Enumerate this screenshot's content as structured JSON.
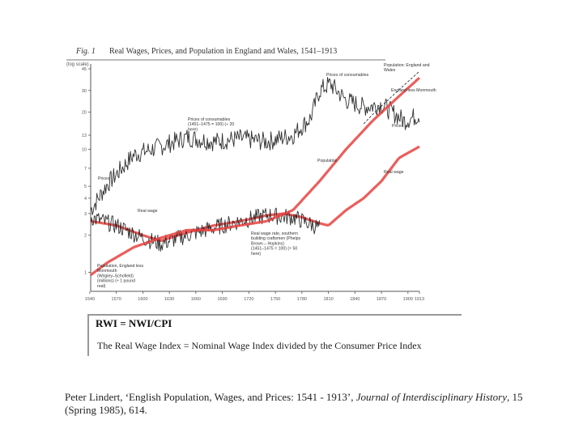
{
  "figure": {
    "caption_fig": "Fig. 1",
    "caption_title": "Real Wages, Prices, and Population in England and Wales, 1541–1913"
  },
  "chart_data": {
    "type": "line",
    "title": "Real Wages, Prices, and Population in England and Wales, 1541–1913",
    "ylabel": "(log scale)",
    "xlim": [
      1541,
      1913
    ],
    "ylim": [
      0.7,
      45
    ],
    "x_ticks": [
      1540,
      1570,
      1600,
      1630,
      1660,
      1690,
      1720,
      1750,
      1780,
      1810,
      1840,
      1870,
      1900,
      1913
    ],
    "x_tick_labels": [
      "1540",
      "1570",
      "1600",
      "1630",
      "1660",
      "1690",
      "1720",
      "1750",
      "1780",
      "1810",
      "1840",
      "1870",
      "1900",
      "1913"
    ],
    "y_ticks": [
      1,
      2,
      3,
      4,
      5,
      7,
      10,
      13,
      20,
      30,
      45
    ],
    "y_tick_labels": [
      "1",
      "2",
      "3",
      "4",
      "5",
      "7",
      "10",
      "13",
      "20",
      "30",
      "45"
    ],
    "series": [
      {
        "name": "Prices of consumables",
        "x": [
          1541,
          1560,
          1590,
          1620,
          1650,
          1680,
          1710,
          1740,
          1770,
          1790,
          1800,
          1812,
          1830,
          1850,
          1870,
          1896,
          1913
        ],
        "y": [
          3.2,
          5.2,
          9,
          10.5,
          12.5,
          11.5,
          12.2,
          11.5,
          13,
          18,
          30,
          34,
          25,
          22,
          23,
          17,
          19
        ]
      },
      {
        "name": "Real wage",
        "x": [
          1541,
          1570,
          1600,
          1620,
          1650,
          1680,
          1710,
          1740,
          1760,
          1780,
          1800,
          1810,
          1830,
          1850,
          1870,
          1890,
          1913
        ],
        "y": [
          2.6,
          2.4,
          2.0,
          1.8,
          2.1,
          2.4,
          2.6,
          2.9,
          3.0,
          2.8,
          2.5,
          2.4,
          3.2,
          4.0,
          5.5,
          8.5,
          10.5
        ]
      },
      {
        "name": "Real wage rate, southern building craftsmen",
        "x": [
          1541,
          1570,
          1600,
          1620,
          1650,
          1680,
          1710,
          1740,
          1770,
          1800
        ],
        "y": [
          2.8,
          2.4,
          1.9,
          1.7,
          2.0,
          2.3,
          2.6,
          2.9,
          2.8,
          2.3
        ]
      },
      {
        "name": "Population",
        "x": [
          1541,
          1560,
          1590,
          1620,
          1650,
          1680,
          1710,
          1740,
          1770,
          1800,
          1830,
          1860,
          1890,
          1913
        ],
        "y": [
          0.95,
          1.2,
          1.6,
          1.9,
          2.2,
          2.2,
          2.4,
          2.6,
          3.2,
          5.5,
          10,
          17,
          27,
          38
        ]
      }
    ],
    "annotations": [
      "Population: England and Wales",
      "Prices of consumables",
      "England less Monmouth",
      "Prices",
      "Prices of consumables (1451–1475 = 100) (÷ 20 here)",
      "Prices",
      "Population",
      "Real wage",
      "Real wage",
      "Real wage rate, southern building craftsmen (Phelps Brown – Hopkins) (1451–1475 = 100) (÷ 50 here)",
      "Population, England less Monmouth (Wrigley–Schofield) (millions) (÷ 1 pound real)"
    ]
  },
  "formula": {
    "title": "RWI = NWI/CPI",
    "definition": "The Real Wage Index = Nominal Wage Index divided by the Consumer Price Index"
  },
  "citation": {
    "prefix": "Peter Lindert, ‘English Population, Wages, and Prices: 1541 - 1913’, ",
    "journal": "Journal of Interdisciplinary History",
    "suffix": ", 15 (Spring 1985), 614."
  },
  "colors": {
    "ink": "#1a1a1a",
    "highlight": "#e8423f",
    "axis": "#555555"
  }
}
